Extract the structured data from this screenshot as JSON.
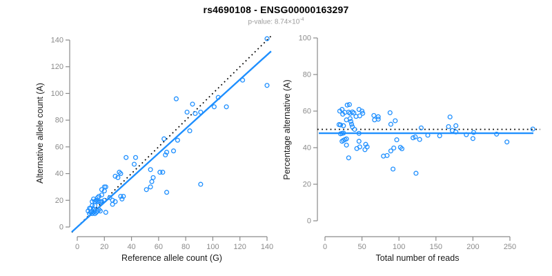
{
  "header": {
    "title": "rs4690108 - ENSG00000163297",
    "subtitle_prefix": "p-value: 8.74×10",
    "subtitle_exponent": "-4"
  },
  "colors": {
    "point_blue": "#1e8fff",
    "fit_line_blue": "#1e8fff",
    "expected_line_black": "#000000",
    "axis_gray": "#8a8a8a",
    "tick_label_gray": "#8a8a8a",
    "axis_title_black": "#1a1a1a",
    "title_black": "#000000",
    "subtitle_gray": "#9b9b9b",
    "background": "#ffffff"
  },
  "chart_data": [
    {
      "type": "scatter",
      "name": "allele-counts-scatter",
      "title": "rs4690108 - ENSG00000163297",
      "xlabel": "Reference allele count (G)",
      "ylabel": "Alternative allele count (A)",
      "xlim": [
        0,
        140
      ],
      "ylim": [
        0,
        140
      ],
      "xticks": [
        0,
        20,
        40,
        60,
        80,
        100,
        120,
        140
      ],
      "yticks": [
        0,
        20,
        40,
        60,
        80,
        100,
        120,
        140
      ],
      "grid": false,
      "legend": null,
      "marker": "open-circle",
      "lines": [
        {
          "name": "identity-line",
          "style": "dotted",
          "color": "#000000",
          "slope": 1,
          "intercept": 0
        },
        {
          "name": "fit-line",
          "style": "solid",
          "color": "#1e8fff",
          "slope": 0.92,
          "intercept": 0
        }
      ],
      "points": [
        [
          8,
          12
        ],
        [
          9,
          10
        ],
        [
          10,
          11
        ],
        [
          11,
          10
        ],
        [
          12,
          11
        ],
        [
          13,
          10
        ],
        [
          13,
          12
        ],
        [
          14,
          11
        ],
        [
          15,
          12
        ],
        [
          12,
          13
        ],
        [
          10,
          14
        ],
        [
          9,
          14
        ],
        [
          11,
          16
        ],
        [
          13,
          16
        ],
        [
          16,
          13
        ],
        [
          17,
          12
        ],
        [
          15,
          19
        ],
        [
          11,
          19
        ],
        [
          13,
          19
        ],
        [
          14,
          20
        ],
        [
          16,
          19
        ],
        [
          17,
          19
        ],
        [
          18,
          19
        ],
        [
          20,
          20
        ],
        [
          12,
          21
        ],
        [
          15,
          22
        ],
        [
          16,
          23
        ],
        [
          18,
          24
        ],
        [
          21,
          11
        ],
        [
          18,
          28
        ],
        [
          20,
          30
        ],
        [
          21,
          30
        ],
        [
          20,
          27
        ],
        [
          24,
          22
        ],
        [
          26,
          20
        ],
        [
          28,
          19
        ],
        [
          26,
          17
        ],
        [
          32,
          23
        ],
        [
          34,
          23
        ],
        [
          33,
          21
        ],
        [
          28,
          38
        ],
        [
          30,
          37
        ],
        [
          32,
          40
        ],
        [
          31,
          41
        ],
        [
          36,
          52
        ],
        [
          43,
          52
        ],
        [
          42,
          47
        ],
        [
          51,
          28
        ],
        [
          54,
          30
        ],
        [
          55,
          34
        ],
        [
          56,
          37
        ],
        [
          54,
          43
        ],
        [
          61,
          41
        ],
        [
          63,
          41
        ],
        [
          65,
          54
        ],
        [
          66,
          26
        ],
        [
          66,
          56
        ],
        [
          71,
          57
        ],
        [
          74,
          65
        ],
        [
          64,
          66
        ],
        [
          83,
          72
        ],
        [
          73,
          96
        ],
        [
          85,
          92
        ],
        [
          81,
          86
        ],
        [
          87,
          85
        ],
        [
          91,
          86
        ],
        [
          91,
          32
        ],
        [
          101,
          90
        ],
        [
          104,
          97
        ],
        [
          110,
          90
        ],
        [
          122,
          110
        ],
        [
          140,
          106
        ],
        [
          140,
          141
        ]
      ]
    },
    {
      "type": "scatter",
      "name": "percentage-vs-coverage-scatter",
      "xlabel": "Total number of reads",
      "ylabel": "Percentage alternative (A)",
      "xlim": [
        0,
        250
      ],
      "ylim": [
        0,
        100
      ],
      "xticks": [
        0,
        50,
        100,
        150,
        200,
        250
      ],
      "yticks": [
        0,
        20,
        40,
        60,
        80,
        100
      ],
      "grid": false,
      "legend": null,
      "marker": "open-circle",
      "lines": [
        {
          "name": "expected-50pct-line",
          "style": "dotted",
          "color": "#000000",
          "y": 50
        },
        {
          "name": "fit-percentage-line",
          "style": "solid",
          "color": "#1e8fff",
          "y": 47.9
        }
      ],
      "points": [
        [
          20,
          60.0
        ],
        [
          19,
          52.6
        ],
        [
          21,
          52.4
        ],
        [
          21,
          47.6
        ],
        [
          23,
          47.8
        ],
        [
          23,
          43.5
        ],
        [
          25,
          48.0
        ],
        [
          25,
          44.0
        ],
        [
          27,
          44.4
        ],
        [
          25,
          52.0
        ],
        [
          24,
          58.3
        ],
        [
          23,
          60.9
        ],
        [
          27,
          59.3
        ],
        [
          29,
          55.2
        ],
        [
          29,
          44.8
        ],
        [
          29,
          41.4
        ],
        [
          34,
          55.9
        ],
        [
          30,
          63.3
        ],
        [
          32,
          59.4
        ],
        [
          34,
          58.8
        ],
        [
          35,
          54.3
        ],
        [
          36,
          52.8
        ],
        [
          37,
          51.4
        ],
        [
          40,
          50.0
        ],
        [
          33,
          63.6
        ],
        [
          37,
          59.5
        ],
        [
          39,
          59.0
        ],
        [
          42,
          57.1
        ],
        [
          32,
          34.4
        ],
        [
          46,
          60.9
        ],
        [
          50,
          60.0
        ],
        [
          51,
          58.8
        ],
        [
          47,
          57.4
        ],
        [
          46,
          47.8
        ],
        [
          46,
          43.5
        ],
        [
          47,
          40.4
        ],
        [
          43,
          39.5
        ],
        [
          55,
          41.8
        ],
        [
          57,
          40.4
        ],
        [
          54,
          38.9
        ],
        [
          66,
          57.6
        ],
        [
          67,
          55.2
        ],
        [
          72,
          55.6
        ],
        [
          72,
          56.9
        ],
        [
          88,
          59.1
        ],
        [
          95,
          54.7
        ],
        [
          89,
          52.8
        ],
        [
          79,
          35.4
        ],
        [
          84,
          35.7
        ],
        [
          89,
          38.2
        ],
        [
          93,
          39.8
        ],
        [
          97,
          44.3
        ],
        [
          102,
          40.2
        ],
        [
          104,
          39.4
        ],
        [
          119,
          45.4
        ],
        [
          92,
          28.3
        ],
        [
          122,
          45.9
        ],
        [
          128,
          44.5
        ],
        [
          139,
          46.8
        ],
        [
          130,
          50.8
        ],
        [
          155,
          46.5
        ],
        [
          169,
          56.8
        ],
        [
          177,
          52.0
        ],
        [
          167,
          51.5
        ],
        [
          172,
          49.4
        ],
        [
          177,
          48.6
        ],
        [
          123,
          26.0
        ],
        [
          191,
          47.1
        ],
        [
          201,
          48.3
        ],
        [
          200,
          45.0
        ],
        [
          232,
          47.4
        ],
        [
          246,
          43.1
        ],
        [
          281,
          50.2
        ]
      ]
    }
  ]
}
